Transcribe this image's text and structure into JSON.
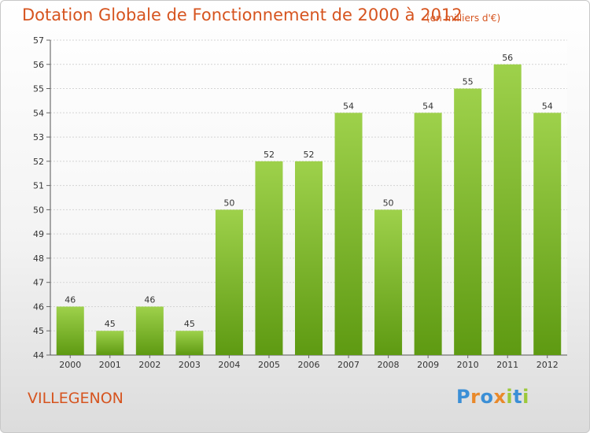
{
  "header": {
    "title": "Dotation Globale de Fonctionnement de 2000 à 2012",
    "subtitle": "(en milliers d'€)"
  },
  "footer": {
    "commune": "VILLEGENON",
    "logo_letters": [
      "P",
      "r",
      "o",
      "x",
      "i",
      "t",
      "i"
    ],
    "logo_colors": [
      "#3b8fd6",
      "#e9892a",
      "#3b8fd6",
      "#e9892a",
      "#9cc83a",
      "#3b8fd6",
      "#9cc83a"
    ]
  },
  "colors": {
    "bar_top": "#9ed14b",
    "bar_bottom": "#5e9a12",
    "title": "#d6541f"
  },
  "chart_data": {
    "type": "bar",
    "title": "Dotation Globale de Fonctionnement de 2000 à 2012",
    "subtitle": "(en milliers d'€)",
    "categories": [
      "2000",
      "2001",
      "2002",
      "2003",
      "2004",
      "2005",
      "2006",
      "2007",
      "2008",
      "2009",
      "2010",
      "2011",
      "2012"
    ],
    "values": [
      46,
      45,
      46,
      45,
      50,
      52,
      52,
      54,
      50,
      54,
      55,
      56,
      54
    ],
    "ylim": [
      44,
      57
    ],
    "yticks": [
      44,
      45,
      46,
      47,
      48,
      49,
      50,
      51,
      52,
      53,
      54,
      55,
      56,
      57
    ],
    "grid": true
  }
}
